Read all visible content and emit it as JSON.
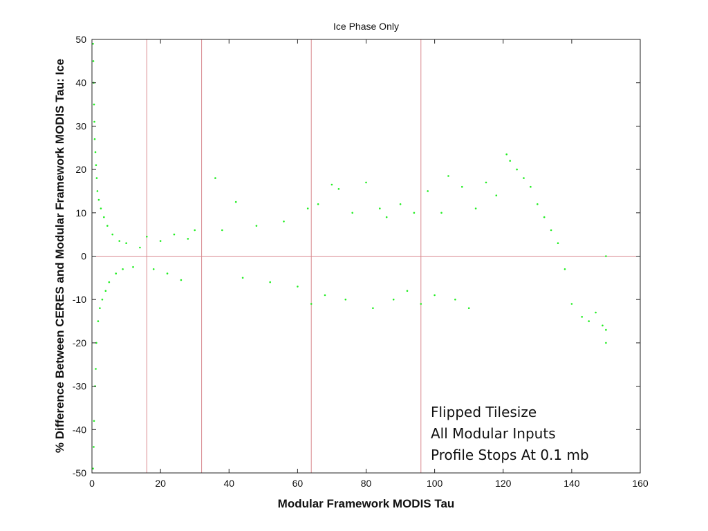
{
  "chart_data": {
    "type": "scatter",
    "title": "Ice Phase Only",
    "xlabel": "Modular Framework MODIS Tau",
    "ylabel": "% Difference Between CERES and Modular Framework MODIS Tau: Ice",
    "xlim": [
      0,
      160
    ],
    "ylim": [
      -50,
      50
    ],
    "xticks": [
      0,
      20,
      40,
      60,
      80,
      100,
      120,
      140,
      160
    ],
    "yticks": [
      -50,
      -40,
      -30,
      -20,
      -10,
      0,
      10,
      20,
      30,
      40,
      50
    ],
    "grid": false,
    "point_color": "#22ee22",
    "reference_lines": {
      "color": "#d9888e",
      "vertical_x": [
        16,
        32,
        64,
        96
      ],
      "horizontal_y": [
        0
      ]
    },
    "annotation_lines": [
      "Flipped Tilesize",
      "All Modular Inputs",
      "Profile Stops At 0.1 mb"
    ],
    "series": [
      {
        "points": [
          [
            0.3,
            49
          ],
          [
            0.3,
            -49
          ],
          [
            0.4,
            45
          ],
          [
            0.5,
            40
          ],
          [
            0.5,
            -44
          ],
          [
            0.6,
            35
          ],
          [
            0.7,
            31
          ],
          [
            0.6,
            -38
          ],
          [
            0.8,
            27
          ],
          [
            0.9,
            -30
          ],
          [
            1.0,
            24
          ],
          [
            1.1,
            -26
          ],
          [
            1.2,
            21
          ],
          [
            1.4,
            18
          ],
          [
            1.3,
            -20
          ],
          [
            1.6,
            15
          ],
          [
            1.8,
            -15
          ],
          [
            2.0,
            13
          ],
          [
            2.3,
            -12
          ],
          [
            2.6,
            11
          ],
          [
            3.0,
            -10
          ],
          [
            3.5,
            9
          ],
          [
            4.0,
            -8
          ],
          [
            4.5,
            7
          ],
          [
            5,
            -6
          ],
          [
            6,
            5
          ],
          [
            7,
            -4
          ],
          [
            8,
            3.5
          ],
          [
            9,
            -3
          ],
          [
            10,
            3
          ],
          [
            12,
            -2.5
          ],
          [
            14,
            2
          ],
          [
            16,
            4.5
          ],
          [
            18,
            -3
          ],
          [
            20,
            3.5
          ],
          [
            22,
            -4
          ],
          [
            24,
            5
          ],
          [
            26,
            -5.5
          ],
          [
            28,
            4
          ],
          [
            30,
            6
          ],
          [
            36,
            18
          ],
          [
            38,
            6
          ],
          [
            42,
            12.5
          ],
          [
            44,
            -5
          ],
          [
            48,
            7
          ],
          [
            52,
            -6
          ],
          [
            56,
            8
          ],
          [
            60,
            -7
          ],
          [
            63,
            11
          ],
          [
            64,
            -11
          ],
          [
            66,
            12
          ],
          [
            68,
            -9
          ],
          [
            70,
            16.5
          ],
          [
            72,
            15.5
          ],
          [
            74,
            -10
          ],
          [
            76,
            10
          ],
          [
            80,
            17
          ],
          [
            82,
            -12
          ],
          [
            84,
            11
          ],
          [
            86,
            9
          ],
          [
            88,
            -10
          ],
          [
            90,
            12
          ],
          [
            92,
            -8
          ],
          [
            94,
            10
          ],
          [
            96,
            -11
          ],
          [
            98,
            15
          ],
          [
            100,
            -9
          ],
          [
            102,
            10
          ],
          [
            104,
            18.5
          ],
          [
            106,
            -10
          ],
          [
            108,
            16
          ],
          [
            110,
            -12
          ],
          [
            112,
            11
          ],
          [
            115,
            17
          ],
          [
            118,
            14
          ],
          [
            121,
            23.5
          ],
          [
            122,
            22
          ],
          [
            124,
            20
          ],
          [
            126,
            18
          ],
          [
            128,
            16
          ],
          [
            130,
            12
          ],
          [
            132,
            9
          ],
          [
            134,
            6
          ],
          [
            136,
            3
          ],
          [
            138,
            -3
          ],
          [
            140,
            -11
          ],
          [
            143,
            -14
          ],
          [
            145,
            -15
          ],
          [
            147,
            -13
          ],
          [
            149,
            -16
          ],
          [
            150,
            -20
          ],
          [
            150,
            -17
          ],
          [
            150,
            0
          ]
        ]
      }
    ]
  }
}
